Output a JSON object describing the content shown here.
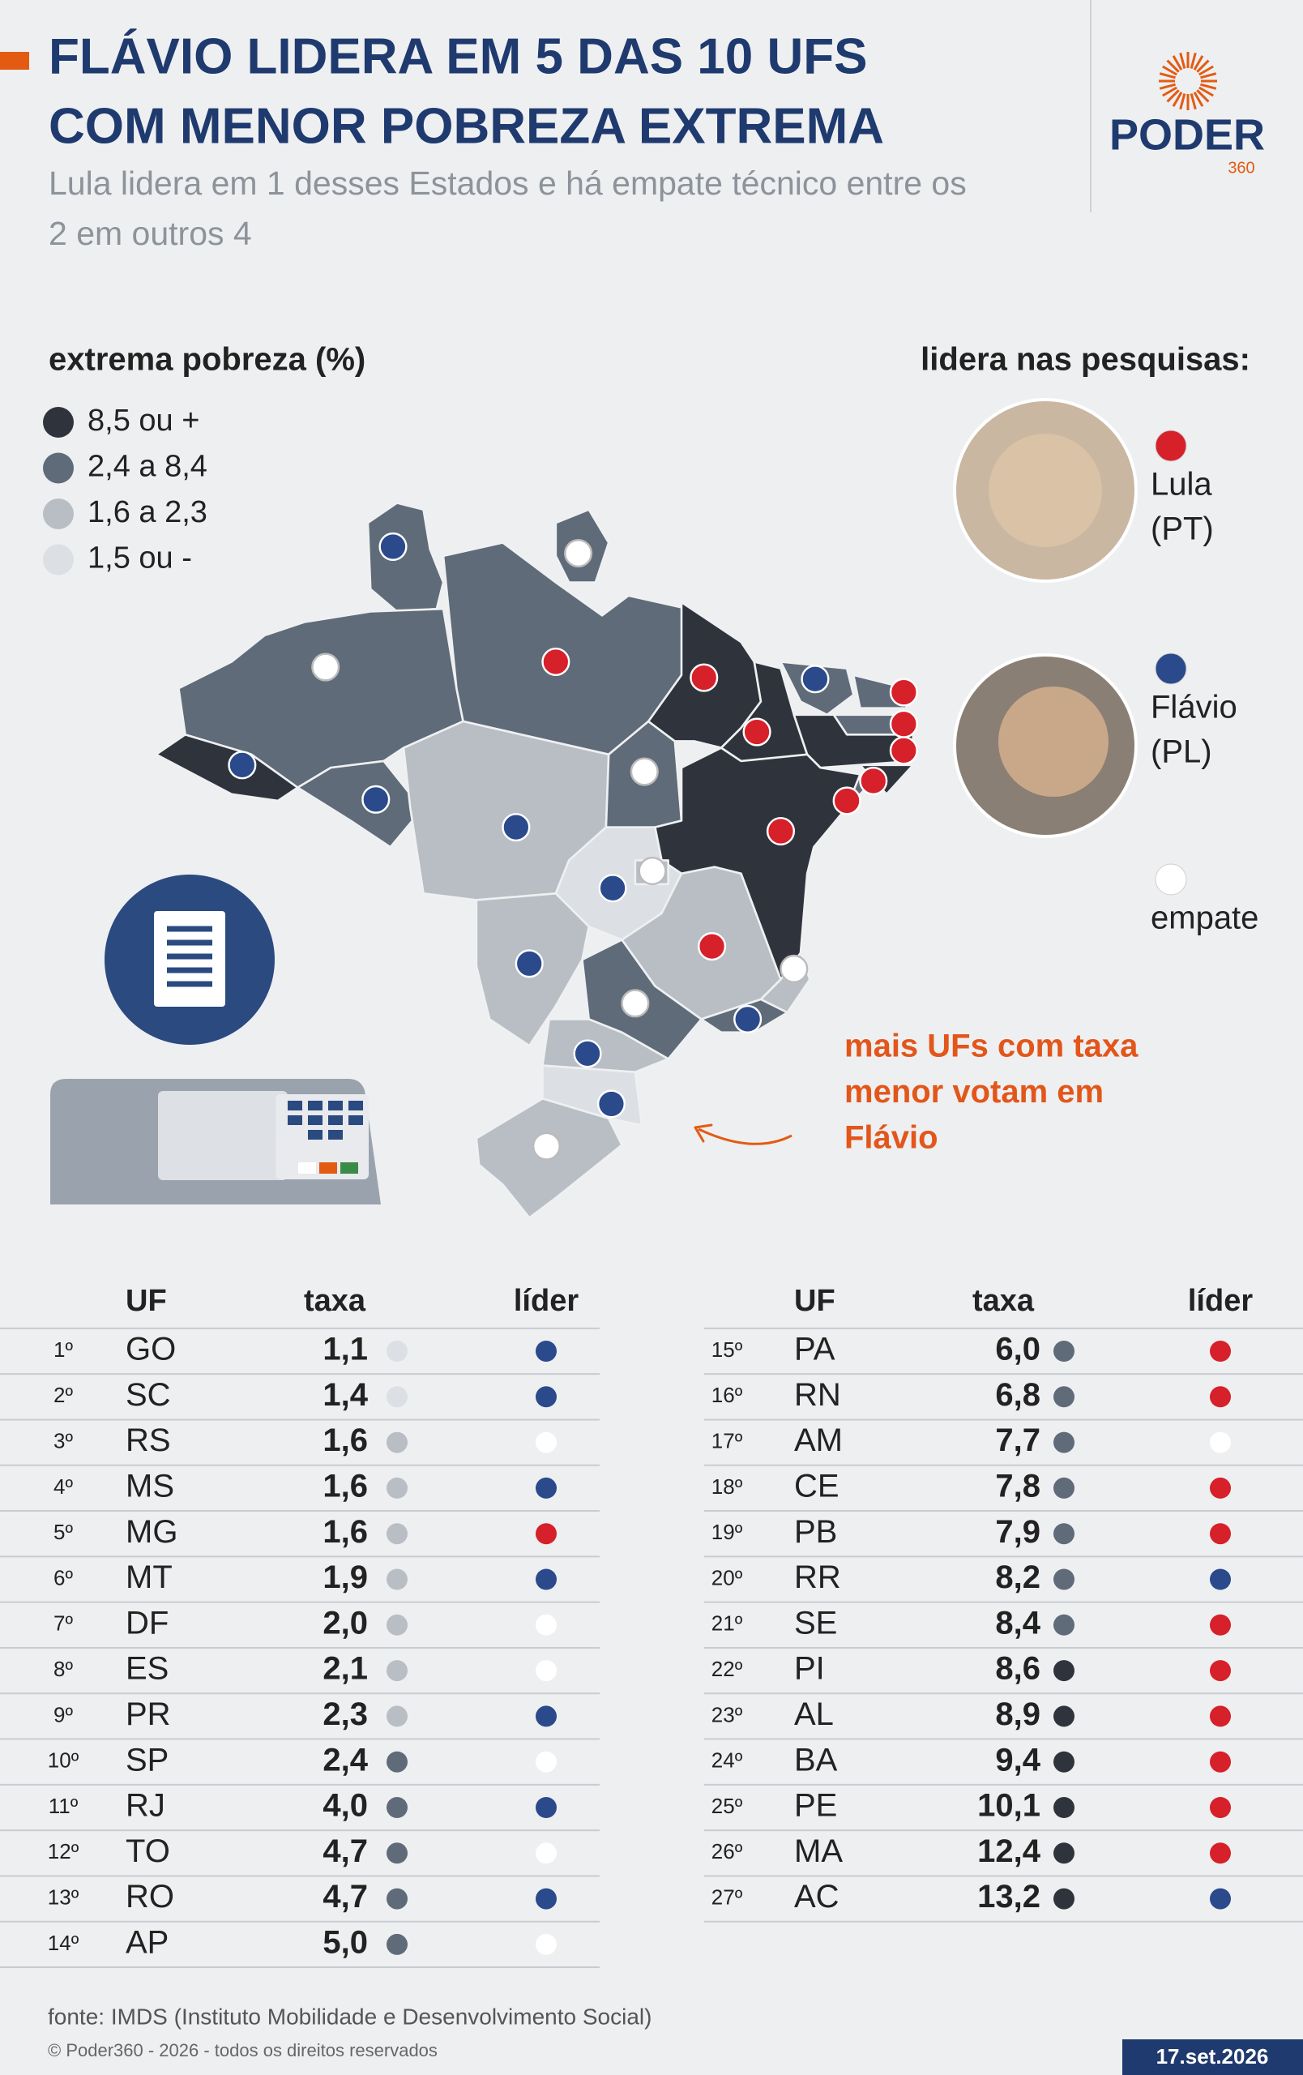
{
  "header": {
    "title": [
      "FLÁVIO LIDERA EM 5 DAS 10 UFS",
      "COM MENOR POBREZA EXTREMA"
    ],
    "subtitle": [
      "Lula lidera em 1 desses Estados e há empate técnico entre os",
      "2 em outros 4"
    ]
  },
  "logo": {
    "name": "PODER",
    "sub": "360"
  },
  "legend": {
    "title": "extrema pobreza (%)",
    "items": [
      {
        "label": "8,5 ou +",
        "color": "#2f343c"
      },
      {
        "label": "2,4 a 8,4",
        "color": "#5f6b78"
      },
      {
        "label": "1,6 a 2,3",
        "color": "#b9bec5"
      },
      {
        "label": "1,5 ou -",
        "color": "#dcdfe3"
      }
    ]
  },
  "leaders": {
    "title": "lidera nas pesquisas:",
    "items": [
      {
        "name": "Lula",
        "party": "(PT)",
        "color": "#d6202a"
      },
      {
        "name": "Flávio",
        "party": "(PL)",
        "color": "#2b4a8b"
      },
      {
        "name": "empate",
        "color": "#ffffff"
      }
    ]
  },
  "annotation": [
    "mais UFs com taxa",
    "menor votam em",
    "Flávio"
  ],
  "table": {
    "columns": [
      "UF",
      "taxa",
      "líder"
    ],
    "rows": [
      {
        "rank": "1º",
        "uf": "GO",
        "rate": "1,1",
        "tier_color": "#dcdfe3",
        "leader_color": "#2b4a8b"
      },
      {
        "rank": "2º",
        "uf": "SC",
        "rate": "1,4",
        "tier_color": "#dcdfe3",
        "leader_color": "#2b4a8b"
      },
      {
        "rank": "3º",
        "uf": "RS",
        "rate": "1,6",
        "tier_color": "#b9bec5",
        "leader_color": "#ffffff"
      },
      {
        "rank": "4º",
        "uf": "MS",
        "rate": "1,6",
        "tier_color": "#b9bec5",
        "leader_color": "#2b4a8b"
      },
      {
        "rank": "5º",
        "uf": "MG",
        "rate": "1,6",
        "tier_color": "#b9bec5",
        "leader_color": "#d6202a"
      },
      {
        "rank": "6º",
        "uf": "MT",
        "rate": "1,9",
        "tier_color": "#b9bec5",
        "leader_color": "#2b4a8b"
      },
      {
        "rank": "7º",
        "uf": "DF",
        "rate": "2,0",
        "tier_color": "#b9bec5",
        "leader_color": "#ffffff"
      },
      {
        "rank": "8º",
        "uf": "ES",
        "rate": "2,1",
        "tier_color": "#b9bec5",
        "leader_color": "#ffffff"
      },
      {
        "rank": "9º",
        "uf": "PR",
        "rate": "2,3",
        "tier_color": "#b9bec5",
        "leader_color": "#2b4a8b"
      },
      {
        "rank": "10º",
        "uf": "SP",
        "rate": "2,4",
        "tier_color": "#5f6b78",
        "leader_color": "#ffffff"
      },
      {
        "rank": "11º",
        "uf": "RJ",
        "rate": "4,0",
        "tier_color": "#5f6b78",
        "leader_color": "#2b4a8b"
      },
      {
        "rank": "12º",
        "uf": "TO",
        "rate": "4,7",
        "tier_color": "#5f6b78",
        "leader_color": "#ffffff"
      },
      {
        "rank": "13º",
        "uf": "RO",
        "rate": "4,7",
        "tier_color": "#5f6b78",
        "leader_color": "#2b4a8b"
      },
      {
        "rank": "14º",
        "uf": "AP",
        "rate": "5,0",
        "tier_color": "#5f6b78",
        "leader_color": "#ffffff"
      },
      {
        "rank": "15º",
        "uf": "PA",
        "rate": "6,0",
        "tier_color": "#5f6b78",
        "leader_color": "#d6202a"
      },
      {
        "rank": "16º",
        "uf": "RN",
        "rate": "6,8",
        "tier_color": "#5f6b78",
        "leader_color": "#d6202a"
      },
      {
        "rank": "17º",
        "uf": "AM",
        "rate": "7,7",
        "tier_color": "#5f6b78",
        "leader_color": "#ffffff"
      },
      {
        "rank": "18º",
        "uf": "CE",
        "rate": "7,8",
        "tier_color": "#5f6b78",
        "leader_color": "#d6202a"
      },
      {
        "rank": "19º",
        "uf": "PB",
        "rate": "7,9",
        "tier_color": "#5f6b78",
        "leader_color": "#d6202a"
      },
      {
        "rank": "20º",
        "uf": "RR",
        "rate": "8,2",
        "tier_color": "#5f6b78",
        "leader_color": "#2b4a8b"
      },
      {
        "rank": "21º",
        "uf": "SE",
        "rate": "8,4",
        "tier_color": "#5f6b78",
        "leader_color": "#d6202a"
      },
      {
        "rank": "22º",
        "uf": "PI",
        "rate": "8,6",
        "tier_color": "#2f343c",
        "leader_color": "#d6202a"
      },
      {
        "rank": "23º",
        "uf": "AL",
        "rate": "8,9",
        "tier_color": "#2f343c",
        "leader_color": "#d6202a"
      },
      {
        "rank": "24º",
        "uf": "BA",
        "rate": "9,4",
        "tier_color": "#2f343c",
        "leader_color": "#d6202a"
      },
      {
        "rank": "25º",
        "uf": "PE",
        "rate": "10,1",
        "tier_color": "#2f343c",
        "leader_color": "#d6202a"
      },
      {
        "rank": "26º",
        "uf": "MA",
        "rate": "12,4",
        "tier_color": "#2f343c",
        "leader_color": "#d6202a"
      },
      {
        "rank": "27º",
        "uf": "AC",
        "rate": "13,2",
        "tier_color": "#2f343c",
        "leader_color": "#2b4a8b"
      }
    ]
  },
  "footer": {
    "source": "fonte: IMDS (Instituto Mobilidade e Desenvolvimento Social)",
    "copyright": "© Poder360 - 2026 - todos os direitos reservados",
    "date": "17.set.2026"
  }
}
